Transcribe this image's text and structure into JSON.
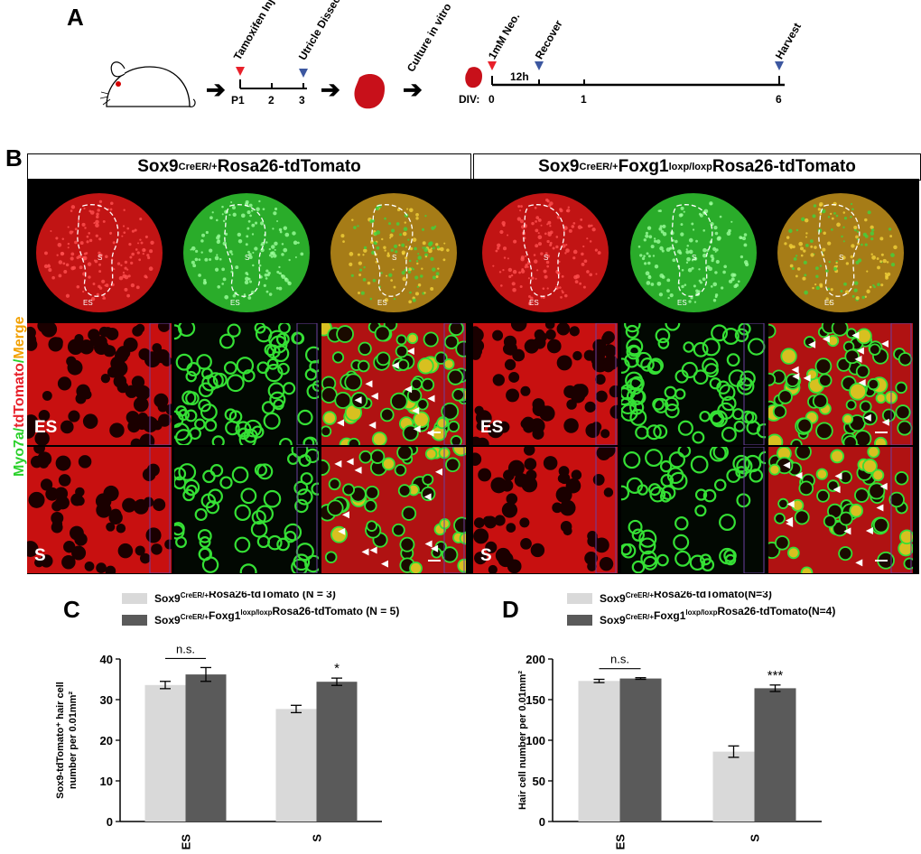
{
  "panels": {
    "a": "A",
    "b": "B",
    "c": "C",
    "d": "D"
  },
  "timeline_a": {
    "events": [
      "Tamoxifen Injection",
      "Utricle Dissection"
    ],
    "days": [
      "P1",
      "2",
      "3"
    ],
    "culture_label": "Culture in vitro"
  },
  "timeline_b": {
    "div_label": "DIV:",
    "days": [
      "0",
      "1",
      "6"
    ],
    "events": [
      "1mM Neo.",
      "Recover",
      "Harvest"
    ],
    "interval": "12h"
  },
  "group_titles": {
    "control_base": "Sox9",
    "control_sup": "CreER/+",
    "control_tail": "Rosa26-tdTomato",
    "cko_base": "Sox9",
    "cko_sup": "CreER/+",
    "cko_mid": "Foxg1",
    "cko_sup2": "loxp/loxp",
    "cko_tail": " Rosa26-tdTomato"
  },
  "channel_label": {
    "myo": "Myo7a",
    "sep1": "/",
    "td": "tdTomato",
    "sep2": "/",
    "merge": "Merge"
  },
  "region_labels": {
    "es": "ES",
    "s": "S"
  },
  "chart_data": [
    {
      "panel": "C",
      "type": "bar",
      "categories": [
        "ES",
        "S"
      ],
      "series": [
        {
          "name": "Sox9CreER/+Rosa26-tdTomato (N = 3)",
          "legend_base": "Sox9",
          "legend_sup": "CreER/+",
          "legend_mid": "",
          "legend_sup2": "",
          "legend_tail": "Rosa26-tdTomato (N = 3)",
          "values": [
            33.6,
            27.7
          ],
          "errors": [
            0.9,
            0.9
          ],
          "color": "#d9d9d9"
        },
        {
          "name": "Sox9CreER/+Foxg1loxp/loxpRosa26-tdTomato (N = 5)",
          "legend_base": "Sox9",
          "legend_sup": "CreER/+",
          "legend_mid": "Foxg1",
          "legend_sup2": "loxp/loxp",
          "legend_tail": "Rosa26-tdTomato (N = 5)",
          "values": [
            36.2,
            34.4
          ],
          "errors": [
            1.7,
            0.9
          ],
          "color": "#5a5a5a"
        }
      ],
      "ylim": [
        0,
        40
      ],
      "yticks": [
        "0",
        "10",
        "20",
        "30",
        "40"
      ],
      "ylabel_line1": "Sox9-tdTomato⁺ hair cell",
      "ylabel_line2": "number per 0.01mm²",
      "annotations": {
        "ns": "n.s.",
        "sig": "*"
      }
    },
    {
      "panel": "D",
      "type": "bar",
      "categories": [
        "ES",
        "S"
      ],
      "series": [
        {
          "name": "Sox9CreER/+Rosa26-tdTomato(N=3)",
          "legend_base": "Sox9",
          "legend_sup": "CreER/+",
          "legend_mid": "",
          "legend_sup2": "",
          "legend_tail": "Rosa26-tdTomato(N=3)",
          "values": [
            173,
            86
          ],
          "errors": [
            2,
            7
          ],
          "color": "#d9d9d9"
        },
        {
          "name": "Sox9CreER/+Foxg1loxp/loxpRosa26-tdTomato(N=4)",
          "legend_base": "Sox9",
          "legend_sup": "CreER/+",
          "legend_mid": "Foxg1",
          "legend_sup2": "loxp/loxp",
          "legend_tail": "Rosa26-tdTomato(N=4)",
          "values": [
            176,
            164
          ],
          "errors": [
            1,
            4
          ],
          "color": "#5a5a5a"
        }
      ],
      "ylim": [
        0,
        200
      ],
      "yticks": [
        "0",
        "50",
        "100",
        "150",
        "200"
      ],
      "ylabel_line1": "Hair cell number per 0.01mm²",
      "ylabel_line2": "",
      "annotations": {
        "ns": "n.s.",
        "sig": "***"
      }
    }
  ]
}
